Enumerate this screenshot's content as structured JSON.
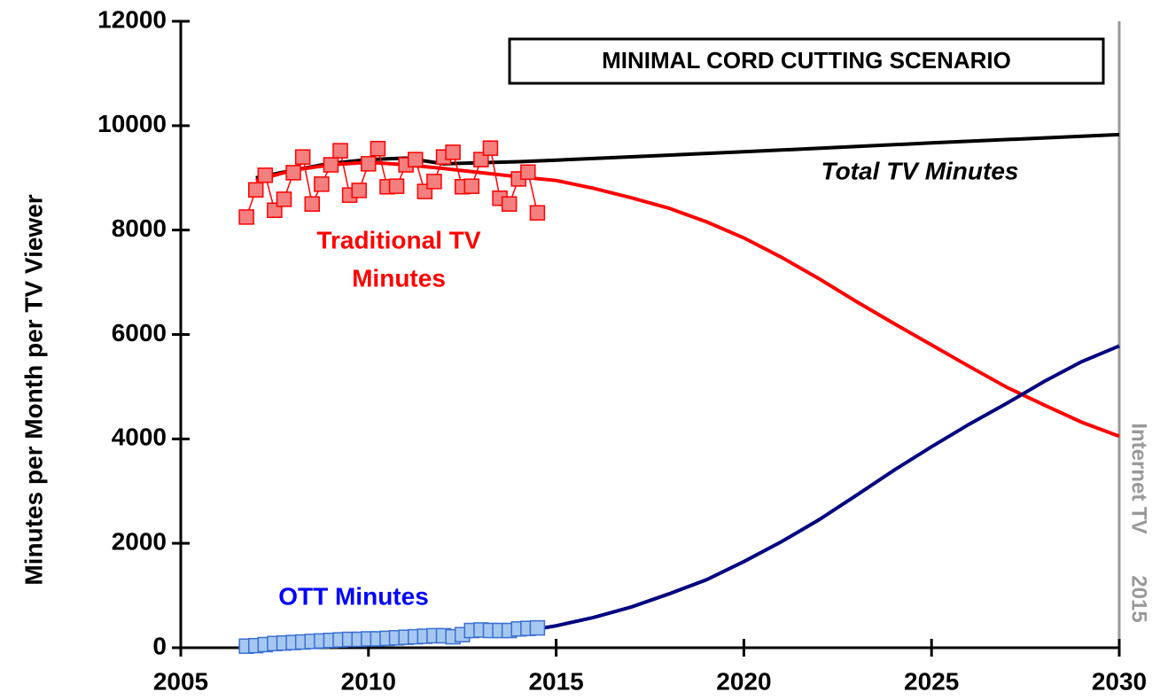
{
  "chart_data": {
    "type": "line",
    "ylabel": "Minutes per Month per TV Viewer",
    "xlim": [
      2005,
      2030
    ],
    "xticks": [
      2005,
      2010,
      2015,
      2020,
      2025,
      2030
    ],
    "ylim": [
      0,
      12000
    ],
    "yticks": [
      0,
      2000,
      4000,
      6000,
      8000,
      10000,
      12000
    ],
    "series": [
      {
        "color": "#000000",
        "style": "line",
        "x": [
          2007,
          2008,
          2009,
          2010,
          2011,
          2012,
          2013,
          2014,
          2015,
          2020,
          2025,
          2030
        ],
        "values": [
          9000,
          9150,
          9280,
          9350,
          9380,
          9270,
          9290,
          9310,
          9340,
          9500,
          9670,
          9830
        ]
      },
      {
        "color": "#ff0000",
        "style": "line",
        "x": [
          2007,
          2008,
          2009,
          2010,
          2011,
          2012,
          2013,
          2014,
          2015,
          2016,
          2017,
          2018,
          2019,
          2020,
          2021,
          2022,
          2023,
          2024,
          2025,
          2026,
          2027,
          2028,
          2029,
          2030
        ],
        "values": [
          8950,
          9150,
          9250,
          9300,
          9250,
          9180,
          9100,
          9020,
          8950,
          8800,
          8620,
          8420,
          8160,
          7850,
          7480,
          7070,
          6630,
          6210,
          5800,
          5390,
          4990,
          4650,
          4320,
          4050
        ]
      },
      {
        "color": "#000080",
        "style": "line",
        "x": [
          2007,
          2008,
          2009,
          2010,
          2011,
          2012,
          2013,
          2014,
          2015,
          2016,
          2017,
          2018,
          2019,
          2020,
          2021,
          2022,
          2023,
          2024,
          2025,
          2026,
          2027,
          2028,
          2029,
          2030
        ],
        "values": [
          50,
          70,
          90,
          110,
          140,
          180,
          230,
          300,
          420,
          580,
          780,
          1030,
          1300,
          1650,
          2030,
          2450,
          2920,
          3400,
          3850,
          4280,
          4680,
          5100,
          5480,
          5780
        ]
      },
      {
        "color": "#ff0000",
        "fill": "#f47f7f",
        "style": "markers",
        "x": [
          2006.75,
          2007,
          2007.25,
          2007.5,
          2007.75,
          2008,
          2008.25,
          2008.5,
          2008.75,
          2009,
          2009.25,
          2009.5,
          2009.75,
          2010,
          2010.25,
          2010.5,
          2010.75,
          2011,
          2011.25,
          2011.5,
          2011.75,
          2012,
          2012.25,
          2012.5,
          2012.75,
          2013,
          2013.25,
          2013.5,
          2013.75,
          2014,
          2014.25,
          2014.5
        ],
        "values": [
          8250,
          8770,
          9050,
          8380,
          8590,
          9100,
          9400,
          8500,
          8880,
          9250,
          9520,
          8670,
          8760,
          9270,
          9560,
          8830,
          8840,
          9250,
          9350,
          8740,
          8930,
          9400,
          9490,
          8830,
          8840,
          9350,
          9570,
          8610,
          8500,
          8980,
          9110,
          8330
        ]
      },
      {
        "color": "#3a6fd0",
        "fill": "#a6c8f0",
        "style": "markers",
        "x": [
          2006.75,
          2007,
          2007.25,
          2007.5,
          2007.75,
          2008,
          2008.25,
          2008.5,
          2008.75,
          2009,
          2009.25,
          2009.5,
          2009.75,
          2010,
          2010.25,
          2010.5,
          2010.75,
          2011,
          2011.25,
          2011.5,
          2011.75,
          2012,
          2012.25,
          2012.5,
          2012.75,
          2013,
          2013.25,
          2013.5,
          2013.75,
          2014,
          2014.25,
          2014.5
        ],
        "values": [
          30,
          40,
          60,
          80,
          90,
          100,
          110,
          120,
          130,
          140,
          150,
          160,
          160,
          170,
          170,
          180,
          190,
          200,
          210,
          220,
          230,
          230,
          210,
          250,
          330,
          340,
          330,
          330,
          330,
          360,
          370,
          380
        ]
      }
    ],
    "annotations": [
      {
        "text": "MINIMAL CORD CUTTING SCENARIO",
        "color": "#000000",
        "boxed": true
      },
      {
        "text": "Total TV Minutes",
        "color": "#000000",
        "italic": true
      },
      {
        "lines": [
          "Traditional TV",
          "Minutes"
        ],
        "color": "#ff0000"
      },
      {
        "text": "OTT Minutes",
        "color": "#0000ff"
      },
      {
        "text": "Internet TV",
        "color": "#999999",
        "vertical": true
      },
      {
        "text": "2015",
        "color": "#999999",
        "vertical": true
      }
    ]
  }
}
